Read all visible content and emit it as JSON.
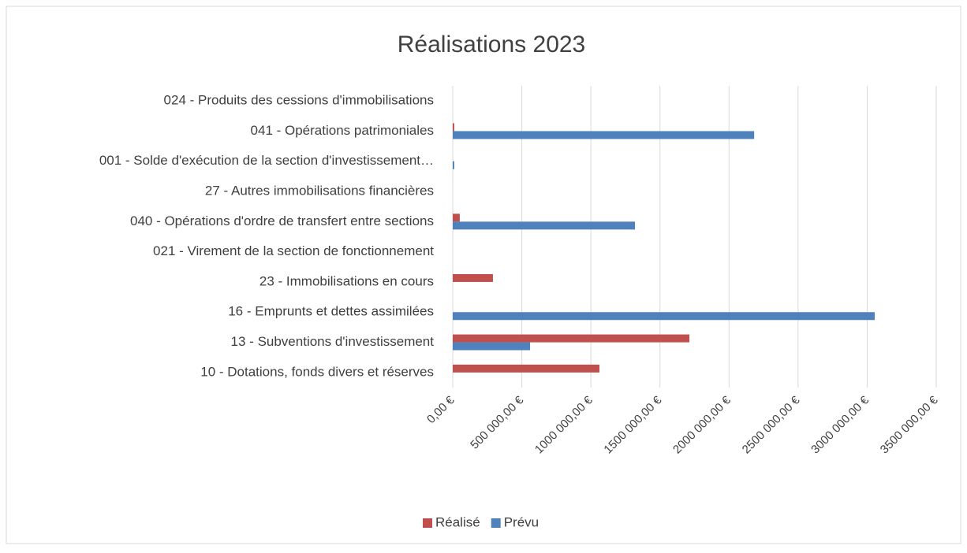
{
  "chart_data": {
    "type": "barh",
    "title": "Réalisations 2023",
    "categories": [
      "10 - Dotations, fonds divers et réserves",
      "13 - Subventions d'investissement",
      "16 - Emprunts et dettes assimilées",
      "23 - Immobilisations en cours",
      "021 - Virement de la section de fonctionnement",
      "040 - Opérations d'ordre de transfert entre sections",
      "27 - Autres immobilisations financières",
      "001 - Solde d'exécution de la section d'investissement…",
      "041 - Opérations patrimoniales",
      "024 - Produits des cessions d'immobilisations"
    ],
    "series": [
      {
        "name": "Réalisé",
        "color": "#c0504d",
        "values": [
          1062000,
          1713000,
          0,
          291000,
          0,
          51000,
          0,
          0,
          11000,
          0
        ]
      },
      {
        "name": "Prévu",
        "color": "#4f81bd",
        "values": [
          0,
          560000,
          3055000,
          0,
          0,
          1319000,
          0,
          11000,
          2182000,
          0
        ]
      }
    ],
    "xlim": [
      0,
      3500000
    ],
    "xticks": [
      {
        "value": 0,
        "label": "0,00 €"
      },
      {
        "value": 500000,
        "label": "500 000,00 €"
      },
      {
        "value": 1000000,
        "label": "1000 000,00 €"
      },
      {
        "value": 1500000,
        "label": "1500 000,00 €"
      },
      {
        "value": 2000000,
        "label": "2000 000,00 €"
      },
      {
        "value": 2500000,
        "label": "2500 000,00 €"
      },
      {
        "value": 3000000,
        "label": "3000 000,00 €"
      },
      {
        "value": 3500000,
        "label": "3500 000,00 €"
      }
    ],
    "grid": true,
    "legend": "bottom"
  }
}
